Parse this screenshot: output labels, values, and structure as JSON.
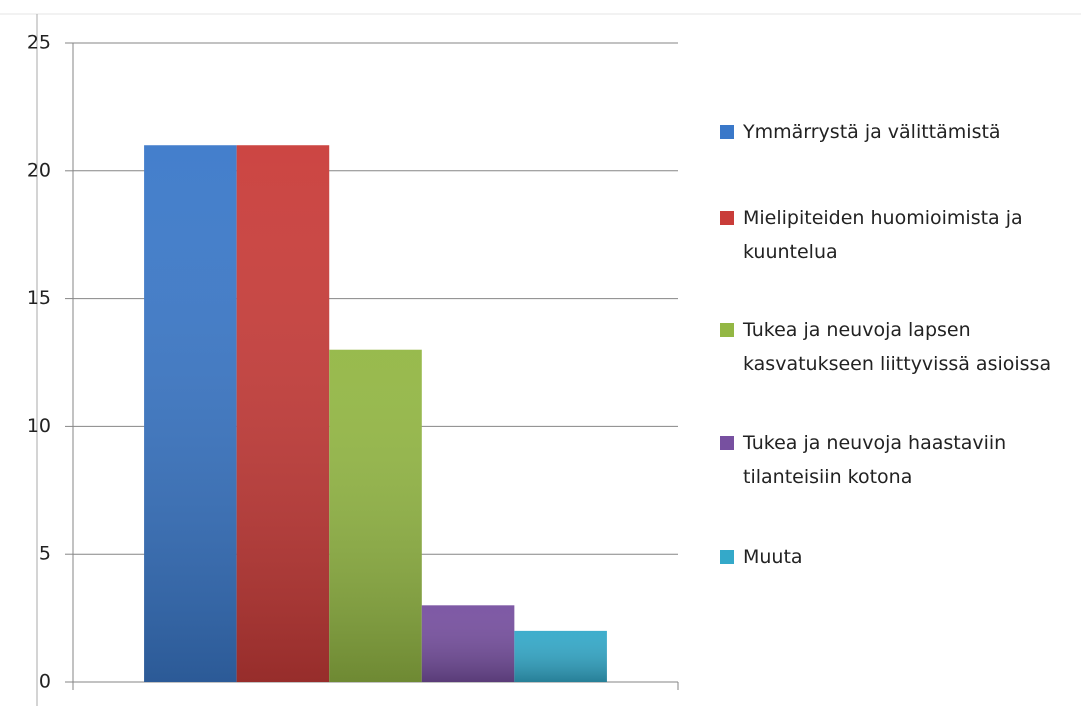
{
  "chart_data": {
    "type": "bar",
    "categories": [
      null
    ],
    "series": [
      {
        "name": "Ymmärrystä ja välittämistä",
        "color": "#3a78c9",
        "values": [
          21
        ]
      },
      {
        "name": "Mielipiteiden huomioimista ja kuuntelua",
        "color": "#c93c39",
        "values": [
          21
        ]
      },
      {
        "name": "Tukea ja neuvoja lapsen kasvatukseen liittyvissä asioissa",
        "color": "#93b744",
        "values": [
          13
        ]
      },
      {
        "name": "Tukea ja neuvoja haastaviin tilanteisiin kotona",
        "color": "#7750a0",
        "values": [
          3
        ]
      },
      {
        "name": "Muuta",
        "color": "#34a9c9",
        "values": [
          2
        ]
      }
    ],
    "ylim": [
      0,
      25
    ],
    "yticks": [
      0,
      5,
      10,
      15,
      20,
      25
    ],
    "grid": true,
    "legend": "right"
  }
}
